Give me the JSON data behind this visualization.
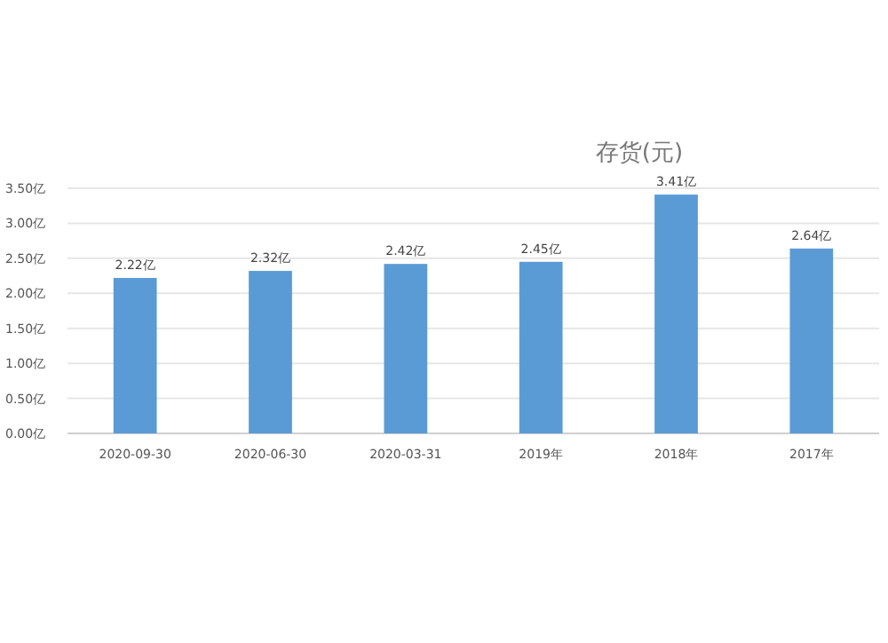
{
  "chart_data": {
    "type": "bar",
    "title": "存货(元)",
    "categories": [
      "2020-09-30",
      "2020-06-30",
      "2020-03-31",
      "2019年",
      "2018年",
      "2017年"
    ],
    "values": [
      2.22,
      2.32,
      2.42,
      2.45,
      3.41,
      2.64
    ],
    "value_labels": [
      "2.22亿",
      "2.32亿",
      "2.42亿",
      "2.45亿",
      "3.41亿",
      "2.64亿"
    ],
    "color": "#5b9bd5",
    "ylim": [
      0,
      3.5
    ],
    "yticks": [
      {
        "value": 0,
        "label": "0.00亿"
      },
      {
        "value": 0.5,
        "label": "0.50亿"
      },
      {
        "value": 1,
        "label": "1.00亿"
      },
      {
        "value": 1.5,
        "label": "1.50亿"
      },
      {
        "value": 2,
        "label": "2.00亿"
      },
      {
        "value": 2.5,
        "label": "2.50亿"
      },
      {
        "value": 3,
        "label": "3.00亿"
      },
      {
        "value": 3.5,
        "label": "3.50亿"
      }
    ],
    "grid": "y"
  }
}
